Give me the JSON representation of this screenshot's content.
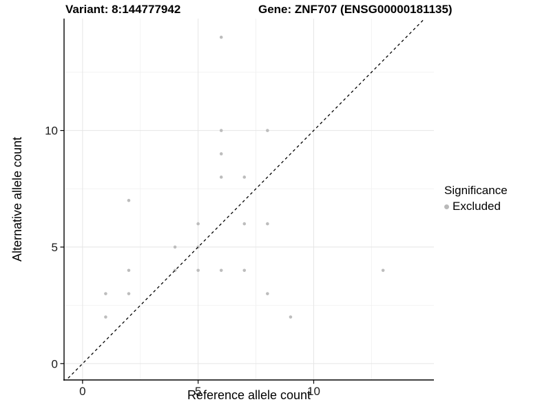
{
  "header": {
    "variant_title": "Variant: 8:144777942",
    "gene_title": "Gene: ZNF707 (ENSG00000181135)"
  },
  "legend": {
    "title": "Significance",
    "items": [
      {
        "label": "Excluded",
        "color": "#b9b9b9"
      }
    ]
  },
  "chart_data": {
    "type": "scatter",
    "xlabel": "Reference allele count",
    "ylabel": "Alternative allele count",
    "xlim": [
      -0.8,
      15.2
    ],
    "ylim": [
      -0.7,
      14.8
    ],
    "x_ticks": [
      0,
      5,
      10
    ],
    "y_ticks": [
      0,
      5,
      10
    ],
    "x_minor_ticks": [
      2.5,
      7.5,
      12.5
    ],
    "y_minor_ticks": [
      2.5,
      7.5,
      12.5
    ],
    "grid": "major and minor gridlines, very light gray on white panel",
    "legend_position": "right",
    "series": [
      {
        "name": "Excluded",
        "color": "#bdbdbd",
        "points": [
          [
            1,
            2
          ],
          [
            1,
            3
          ],
          [
            2,
            3
          ],
          [
            2,
            4
          ],
          [
            2,
            7
          ],
          [
            4,
            4
          ],
          [
            4,
            5
          ],
          [
            5,
            4
          ],
          [
            5,
            5
          ],
          [
            5,
            6
          ],
          [
            6,
            4
          ],
          [
            6,
            8
          ],
          [
            6,
            9
          ],
          [
            6,
            10
          ],
          [
            6,
            14
          ],
          [
            7,
            4
          ],
          [
            7,
            6
          ],
          [
            7,
            8
          ],
          [
            8,
            3
          ],
          [
            8,
            6
          ],
          [
            8,
            10
          ],
          [
            9,
            2
          ],
          [
            13,
            4
          ]
        ]
      }
    ],
    "reference_line": {
      "kind": "identity y = x",
      "slope": 1,
      "intercept": 0,
      "style": "dashed",
      "color": "#000000"
    },
    "colors": {
      "point": "#bdbdbd",
      "axis_line": "#000000",
      "tick_label": "#1a1a1a",
      "grid_major": "#e5e5e5",
      "grid_minor": "#f2f2f2",
      "background": "#ffffff"
    }
  }
}
